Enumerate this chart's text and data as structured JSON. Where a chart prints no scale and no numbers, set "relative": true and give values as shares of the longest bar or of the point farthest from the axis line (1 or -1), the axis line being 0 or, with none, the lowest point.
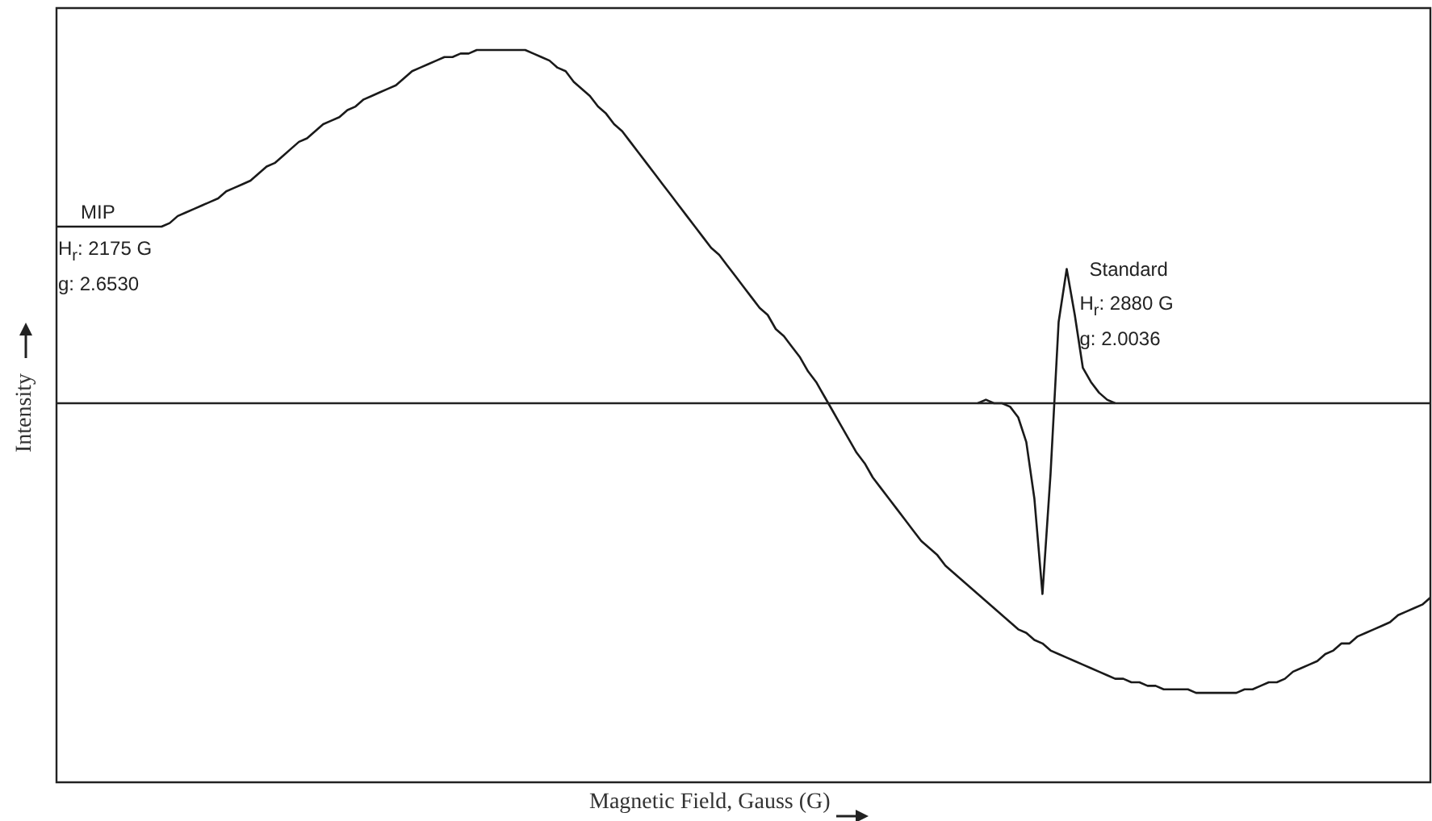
{
  "chart_data": {
    "type": "line",
    "relative": true,
    "xlabel": "Magnetic Field, Gauss (G)",
    "ylabel": "Intensity",
    "categories": [
      null,
      null,
      null,
      null,
      null,
      null,
      null,
      null,
      null,
      null,
      null,
      null,
      null,
      null,
      null,
      null,
      null,
      null,
      null,
      null,
      null,
      null,
      null,
      null,
      null,
      null,
      null,
      null,
      null,
      null,
      null,
      null,
      null,
      null,
      null,
      null,
      null,
      null,
      null,
      null,
      null,
      null,
      null,
      null,
      null,
      null,
      null,
      null,
      null,
      null,
      null,
      null,
      null,
      null,
      null,
      null,
      null,
      null,
      null,
      null,
      null,
      null,
      null,
      null,
      null,
      null,
      null,
      null,
      null,
      null,
      null,
      null,
      null,
      null,
      null,
      null,
      null,
      null,
      null,
      null,
      null,
      null,
      null,
      null,
      null,
      null,
      null,
      null,
      null,
      null,
      null,
      null,
      null,
      null,
      null,
      null,
      null,
      null,
      null,
      null,
      null,
      null,
      null,
      null,
      null,
      null,
      null,
      null,
      null,
      null,
      null,
      null,
      null,
      null,
      null,
      null,
      null,
      null,
      null,
      null,
      null,
      null,
      null,
      null,
      null,
      null,
      null,
      null,
      null,
      null,
      null,
      null,
      null,
      null,
      null,
      null,
      null,
      null,
      null,
      null,
      null,
      null,
      null,
      null,
      null,
      null,
      null,
      null,
      null,
      null,
      null,
      null,
      null,
      null,
      null,
      null,
      null,
      null,
      null,
      null,
      null,
      null,
      null,
      null,
      null,
      null,
      null,
      null,
      null,
      null,
      null
    ],
    "series": [
      {
        "name": "MIP",
        "color": "#1a1a1a",
        "values": [
          0.5,
          0.5,
          0.5,
          0.5,
          0.5,
          0.5,
          0.5,
          0.5,
          0.5,
          0.5,
          0.5,
          0.5,
          0.5,
          0.5,
          0.51,
          0.53,
          0.54,
          0.55,
          0.56,
          0.57,
          0.58,
          0.6,
          0.61,
          0.62,
          0.63,
          0.65,
          0.67,
          0.68,
          0.7,
          0.72,
          0.74,
          0.75,
          0.77,
          0.79,
          0.8,
          0.81,
          0.83,
          0.84,
          0.86,
          0.87,
          0.88,
          0.89,
          0.9,
          0.92,
          0.94,
          0.95,
          0.96,
          0.97,
          0.98,
          0.98,
          0.99,
          0.99,
          1.0,
          1.0,
          1.0,
          1.0,
          1.0,
          1.0,
          1.0,
          0.99,
          0.98,
          0.97,
          0.95,
          0.94,
          0.91,
          0.89,
          0.87,
          0.84,
          0.82,
          0.79,
          0.77,
          0.74,
          0.71,
          0.68,
          0.65,
          0.62,
          0.59,
          0.56,
          0.53,
          0.5,
          0.47,
          0.44,
          0.42,
          0.39,
          0.36,
          0.33,
          0.3,
          0.27,
          0.25,
          0.21,
          0.19,
          0.16,
          0.13,
          0.09,
          0.06,
          0.02,
          -0.02,
          -0.06,
          -0.1,
          -0.14,
          -0.17,
          -0.21,
          -0.24,
          -0.27,
          -0.3,
          -0.33,
          -0.36,
          -0.39,
          -0.41,
          -0.43,
          -0.46,
          -0.48,
          -0.5,
          -0.52,
          -0.54,
          -0.56,
          -0.58,
          -0.6,
          -0.62,
          -0.64,
          -0.65,
          -0.67,
          -0.68,
          -0.7,
          -0.71,
          -0.72,
          -0.73,
          -0.74,
          -0.75,
          -0.76,
          -0.77,
          -0.78,
          -0.78,
          -0.79,
          -0.79,
          -0.8,
          -0.8,
          -0.81,
          -0.81,
          -0.81,
          -0.81,
          -0.82,
          -0.82,
          -0.82,
          -0.82,
          -0.82,
          -0.82,
          -0.81,
          -0.81,
          -0.8,
          -0.79,
          -0.79,
          -0.78,
          -0.76,
          -0.75,
          -0.74,
          -0.73,
          -0.71,
          -0.7,
          -0.68,
          -0.68,
          -0.66,
          -0.65,
          -0.64,
          -0.63,
          -0.62,
          -0.6,
          -0.59,
          -0.58,
          -0.57,
          -0.55
        ]
      },
      {
        "name": "Standard",
        "color": "#1a1a1a",
        "values": [
          null,
          null,
          null,
          null,
          null,
          null,
          null,
          null,
          null,
          null,
          null,
          null,
          null,
          null,
          null,
          null,
          null,
          null,
          null,
          null,
          null,
          null,
          null,
          null,
          null,
          null,
          null,
          null,
          null,
          null,
          null,
          null,
          null,
          null,
          null,
          null,
          null,
          null,
          null,
          null,
          null,
          null,
          null,
          null,
          null,
          null,
          null,
          null,
          null,
          null,
          null,
          null,
          null,
          null,
          null,
          null,
          null,
          null,
          null,
          null,
          null,
          null,
          null,
          null,
          null,
          null,
          null,
          null,
          null,
          null,
          null,
          null,
          null,
          null,
          null,
          null,
          null,
          null,
          null,
          null,
          null,
          null,
          null,
          null,
          null,
          null,
          null,
          null,
          null,
          null,
          null,
          null,
          null,
          null,
          null,
          null,
          null,
          null,
          null,
          null,
          null,
          null,
          null,
          null,
          null,
          null,
          null,
          null,
          null,
          null,
          null,
          null,
          null,
          null,
          0,
          0.01,
          0,
          0,
          -0.01,
          -0.04,
          -0.11,
          -0.27,
          -0.54,
          -0.2,
          0.23,
          0.38,
          0.25,
          0.1,
          0.06,
          0.03,
          0.01,
          0,
          null,
          null,
          null,
          null,
          null,
          null,
          null,
          null,
          null,
          null,
          null,
          null,
          null,
          null,
          null,
          null,
          null,
          null,
          null,
          null,
          null,
          null,
          null,
          null,
          null,
          null,
          null,
          null,
          null,
          null,
          null,
          null,
          null,
          null,
          null,
          null,
          null,
          null,
          null
        ]
      }
    ],
    "annotations": [
      "H$_{r}$: 2175 G",
      "g: 2.6530",
      "H$_{r}$: 2880 G",
      "g: 2.0036"
    ]
  }
}
